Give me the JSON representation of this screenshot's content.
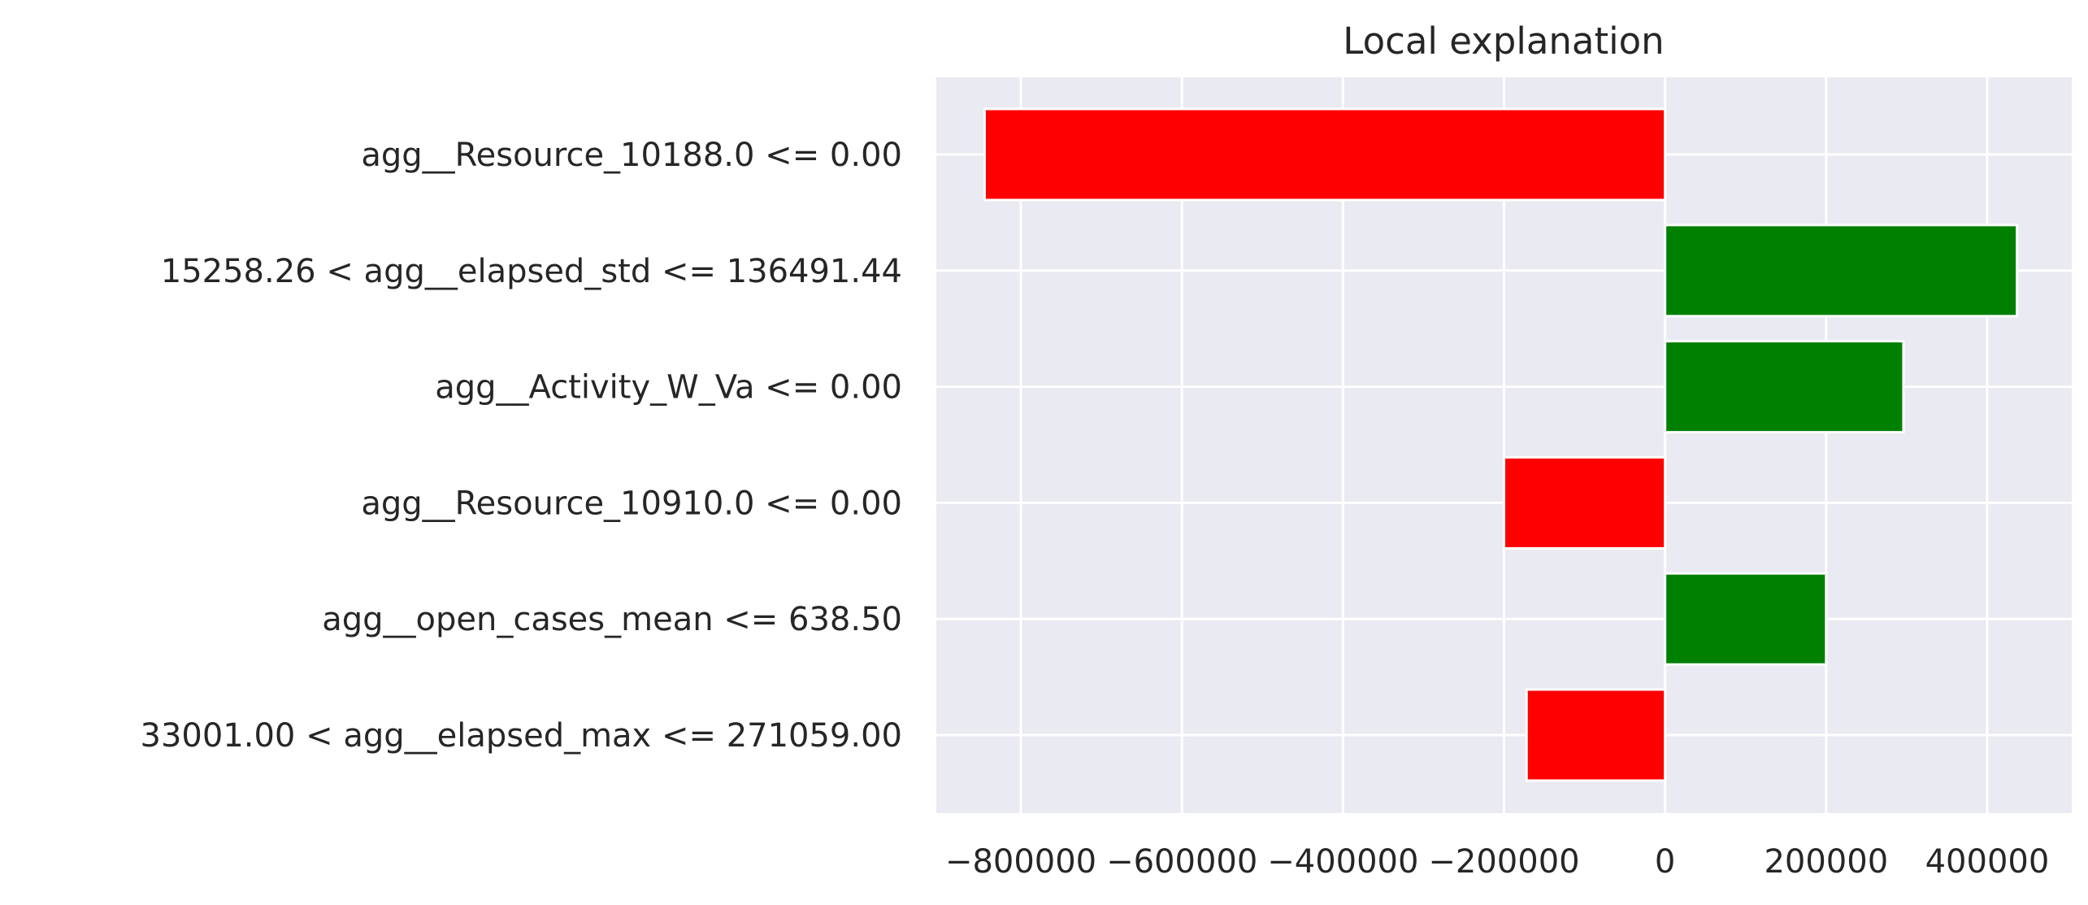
{
  "chart_data": {
    "type": "bar",
    "orientation": "horizontal",
    "title": "Local explanation",
    "xlabel": "",
    "ylabel": "",
    "categories": [
      "agg__Resource_10188.0 <= 0.00",
      "15258.26 < agg__elapsed_std <= 136491.44",
      "agg__Activity_W_Va <= 0.00",
      "agg__Resource_10910.0 <= 0.00",
      "agg__open_cases_mean <= 638.50",
      "33001.00 < agg__elapsed_max <= 271059.00"
    ],
    "values": [
      -845000,
      437000,
      296000,
      -200000,
      200000,
      -172000
    ],
    "xlim": [
      -905000,
      505000
    ],
    "xticks": [
      -800000,
      -600000,
      -400000,
      -200000,
      0,
      200000,
      400000
    ],
    "xtick_labels": [
      "−800000",
      "−600000",
      "−400000",
      "−200000",
      "0",
      "200000",
      "400000"
    ],
    "grid": true,
    "colors": {
      "positive": "#008000",
      "negative": "#ff0000",
      "background": "#eaeaf2",
      "grid": "#ffffff",
      "text": "#262626"
    }
  }
}
